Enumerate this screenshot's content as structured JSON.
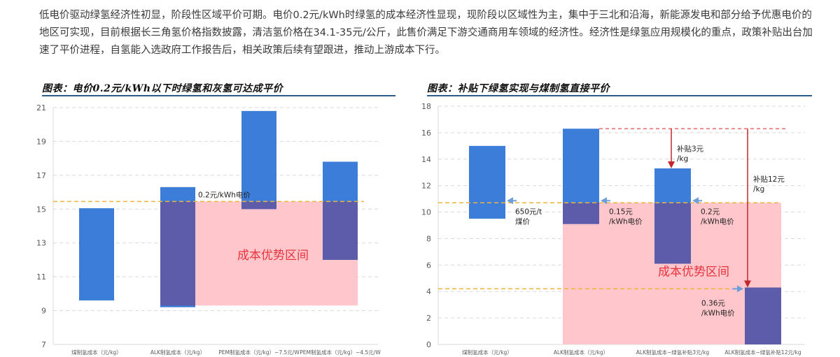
{
  "intro_text": "低电价驱动绿氢经济性初显，阶段性区域平价可期。电价0.2元/kWh时绿氢的成本经济性显现，现阶段以区域性为主，集中于三北和沿海，新能源发电和部分给予优惠电价的地区可实现，目前根据长三角氢价格指数披露，清洁氢价格在34.1-35元/公斤，此售价满足下游交通商用车领域的经济性。经济性是绿氢应用规模化的重点，政策补贴出台加速了平价进程，自氢能入选政府工作报告后，相关政策后续有望跟进，推动上游成本下行。",
  "colors": {
    "bar_blue": "#3b7dd8",
    "bar_overlap": "#5c5cab",
    "zone_pink": "#ffc7cc",
    "zone_text": "#e8323c",
    "dash_orange": "#f0b43c",
    "dash_red": "#e03c3c",
    "arrow_blue": "#6f9fd8",
    "arrow_red": "#c0282a",
    "title_rule": "#2e5d8a"
  },
  "chart_data": [
    {
      "type": "bar",
      "title": "图表：电价0.2元/kWh以下时绿氢和灰氢可达成平价",
      "categories": [
        "煤制氢成本（元/kg）",
        "ALK制氢成本（元/kg）",
        "PEM制氢成本（元/kg）~7.5元/W",
        "PEM制氢成本（元/kg）~4.5元/W"
      ],
      "ranges": [
        [
          9.6,
          15.05
        ],
        [
          9.2,
          16.3
        ],
        [
          15.0,
          20.8
        ],
        [
          12.0,
          17.8
        ]
      ],
      "ylim": [
        7,
        21
      ],
      "yticks": [
        7,
        9,
        11,
        13,
        15,
        17,
        19,
        21
      ],
      "grid": true,
      "reference_line": {
        "value": 15.45,
        "label": "0.2元/kWh电价"
      },
      "zone": {
        "from": 9.3,
        "to": 15.45,
        "label": "成本优势区间"
      }
    },
    {
      "type": "bar",
      "title": "图表：补贴下绿氢实现与煤制氢直接平价",
      "categories": [
        "煤制氢成本（元/kg）",
        "ALK制氢成本（元/kg）",
        "ALK制氢成本~绿氢补贴3元/kg",
        "ALK制氢成本~绿氢补贴12元/kg"
      ],
      "ranges": [
        [
          9.5,
          15.0
        ],
        [
          9.1,
          16.3
        ],
        [
          6.1,
          13.3
        ],
        [
          0,
          4.3
        ]
      ],
      "ylim": [
        0,
        18
      ],
      "yticks": [
        0,
        2,
        4,
        6,
        8,
        10,
        12,
        14,
        16,
        18
      ],
      "grid": true,
      "reference_lines": [
        {
          "value": 10.7,
          "label": "650元/t 煤价"
        },
        {
          "value": 4.2,
          "label": "0.36元/kWh电价"
        }
      ],
      "value_labels": [
        "0.15元/kWh电价",
        "0.2元/kWh电价"
      ],
      "subsidy_labels": [
        "补贴3元/kg",
        "补贴12元/kg"
      ],
      "subsidy_line": 16.3,
      "zone": {
        "from": 0,
        "to": 10.7,
        "label": "成本优势区间"
      }
    }
  ]
}
